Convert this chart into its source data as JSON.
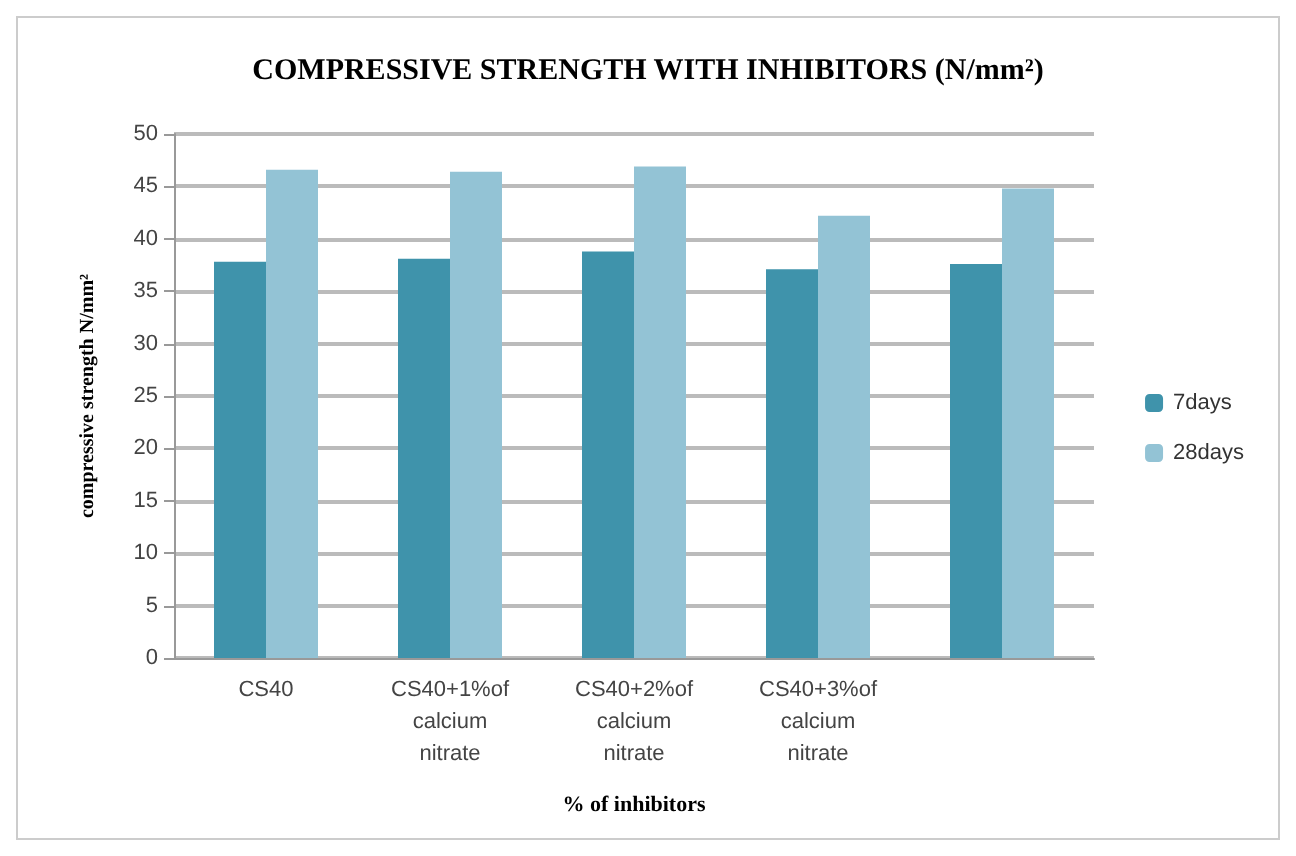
{
  "chart_data": {
    "type": "bar",
    "title": "COMPRESSIVE STRENGTH WITH INHIBITORS (N/mm²)",
    "xlabel": "% of inhibitors",
    "ylabel": "compressive strength N/mm²",
    "categories": [
      "CS40",
      "CS40+1%of\ncalcium\nnitrate",
      "CS40+2%of\ncalcium\nnitrate",
      "CS40+3%of\ncalcium\nnitrate",
      null
    ],
    "series": [
      {
        "name": "7days",
        "color": "#3f93ab",
        "values": [
          37.8,
          38.1,
          38.8,
          37.1,
          37.6
        ]
      },
      {
        "name": "28days",
        "color": "#93c3d5",
        "values": [
          46.6,
          46.4,
          46.9,
          42.2,
          44.8
        ]
      }
    ],
    "ylim": [
      0,
      50
    ],
    "yticks": [
      0,
      5,
      10,
      15,
      20,
      25,
      30,
      35,
      40,
      45,
      50
    ],
    "grid": "y",
    "legend": "right"
  }
}
